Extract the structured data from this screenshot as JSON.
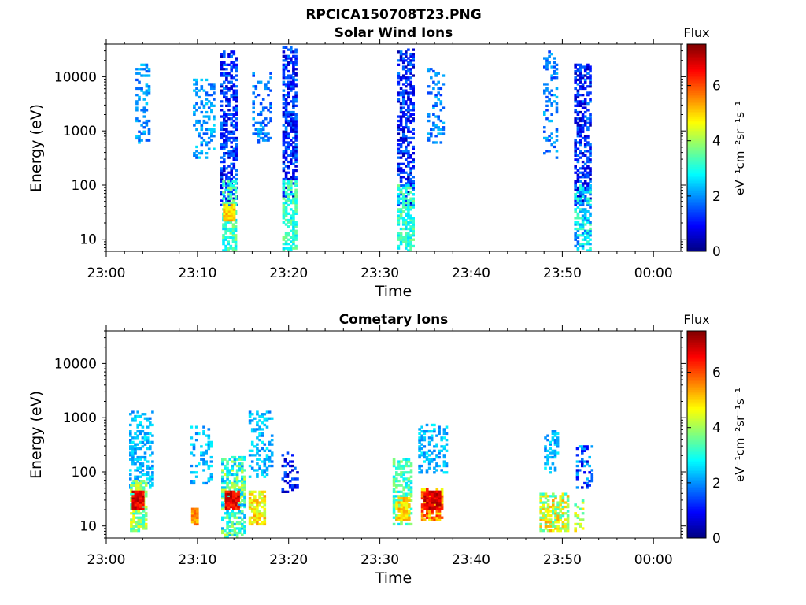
{
  "figure": {
    "title": "RPCICA150708T23.PNG"
  },
  "colorbar_colors": [
    "#00007f",
    "#0000ff",
    "#007fff",
    "#00ffff",
    "#7fff7f",
    "#ffff00",
    "#ff7f00",
    "#ff0000",
    "#7f0000"
  ],
  "chart_data": [
    {
      "type": "heatmap",
      "title": "Solar Wind Ions",
      "xlabel": "Time",
      "ylabel": "Energy (eV)",
      "yscale": "log",
      "ylim": [
        6,
        40000
      ],
      "xlim_minutes": [
        0,
        63
      ],
      "x_ticks": [
        "23:00",
        "23:10",
        "23:20",
        "23:30",
        "23:40",
        "23:50",
        "00:00"
      ],
      "y_ticks": [
        "10",
        "100",
        "1000",
        "10000"
      ],
      "colorbar": {
        "label": "Flux",
        "units": "eV⁻¹cm⁻²sr⁻¹s⁻¹",
        "range": [
          0,
          7.5
        ],
        "ticks": [
          "0",
          "2",
          "4",
          "6"
        ]
      },
      "regions": [
        {
          "t": [
            3.2,
            4.8
          ],
          "e": [
            600,
            18000
          ],
          "density": 0.35,
          "flux": [
            1.5,
            2.5
          ]
        },
        {
          "t": [
            9.5,
            11.8
          ],
          "e": [
            300,
            9500
          ],
          "density": 0.3,
          "flux": [
            1.5,
            2.6
          ]
        },
        {
          "t": [
            12.5,
            14.2
          ],
          "e": [
            40,
            30000
          ],
          "density": 0.55,
          "flux": [
            0.3,
            2.0
          ]
        },
        {
          "t": [
            12.7,
            14.2
          ],
          "e": [
            6,
            120
          ],
          "density": 0.65,
          "flux": [
            2.5,
            4.0
          ]
        },
        {
          "t": [
            12.8,
            14.0
          ],
          "e": [
            22,
            45
          ],
          "density": 0.95,
          "flux": [
            4.5,
            5.5
          ]
        },
        {
          "t": [
            16.0,
            18.0
          ],
          "e": [
            600,
            12000
          ],
          "density": 0.3,
          "flux": [
            1.3,
            2.4
          ]
        },
        {
          "t": [
            19.3,
            20.9
          ],
          "e": [
            60,
            36000
          ],
          "density": 0.55,
          "flux": [
            0.3,
            2.0
          ]
        },
        {
          "t": [
            19.3,
            20.9
          ],
          "e": [
            6,
            120
          ],
          "density": 0.6,
          "flux": [
            2.5,
            3.8
          ]
        },
        {
          "t": [
            31.9,
            33.6
          ],
          "e": [
            40,
            33000
          ],
          "density": 0.55,
          "flux": [
            0.3,
            2.0
          ]
        },
        {
          "t": [
            31.9,
            33.6
          ],
          "e": [
            6,
            100
          ],
          "density": 0.6,
          "flux": [
            2.5,
            3.8
          ]
        },
        {
          "t": [
            35.2,
            36.9
          ],
          "e": [
            600,
            14000
          ],
          "density": 0.3,
          "flux": [
            1.3,
            2.4
          ]
        },
        {
          "t": [
            47.9,
            49.5
          ],
          "e": [
            300,
            30000
          ],
          "density": 0.3,
          "flux": [
            1.3,
            2.4
          ]
        },
        {
          "t": [
            51.3,
            53.1
          ],
          "e": [
            40,
            18000
          ],
          "density": 0.55,
          "flux": [
            0.3,
            2.0
          ]
        },
        {
          "t": [
            51.3,
            53.1
          ],
          "e": [
            6,
            100
          ],
          "density": 0.6,
          "flux": [
            1.5,
            3.5
          ]
        }
      ]
    },
    {
      "type": "heatmap",
      "title": "Cometary Ions",
      "xlabel": "Time",
      "ylabel": "Energy (eV)",
      "yscale": "log",
      "ylim": [
        6,
        40000
      ],
      "xlim_minutes": [
        0,
        63
      ],
      "x_ticks": [
        "23:00",
        "23:10",
        "23:20",
        "23:30",
        "23:40",
        "23:50",
        "00:00"
      ],
      "y_ticks": [
        "10",
        "100",
        "1000",
        "10000"
      ],
      "colorbar": {
        "label": "Flux",
        "units": "eV⁻¹cm⁻²sr⁻¹s⁻¹",
        "range": [
          0,
          7.5
        ],
        "ticks": [
          "0",
          "2",
          "4",
          "6"
        ]
      },
      "regions": [
        {
          "t": [
            2.5,
            5.0
          ],
          "e": [
            50,
            1300
          ],
          "density": 0.35,
          "flux": [
            1.8,
            2.8
          ]
        },
        {
          "t": [
            2.6,
            4.4
          ],
          "e": [
            8,
            70
          ],
          "density": 0.75,
          "flux": [
            3.0,
            4.8
          ]
        },
        {
          "t": [
            2.8,
            4.0
          ],
          "e": [
            20,
            45
          ],
          "density": 0.95,
          "flux": [
            6.2,
            7.3
          ]
        },
        {
          "t": [
            9.2,
            11.5
          ],
          "e": [
            60,
            700
          ],
          "density": 0.3,
          "flux": [
            1.8,
            2.8
          ]
        },
        {
          "t": [
            9.3,
            10.1
          ],
          "e": [
            10,
            22
          ],
          "density": 0.9,
          "flux": [
            5.0,
            6.0
          ]
        },
        {
          "t": [
            12.6,
            15.2
          ],
          "e": [
            6,
            200
          ],
          "density": 0.6,
          "flux": [
            2.0,
            4.5
          ]
        },
        {
          "t": [
            13.0,
            14.5
          ],
          "e": [
            20,
            45
          ],
          "density": 0.95,
          "flux": [
            6.0,
            7.3
          ]
        },
        {
          "t": [
            15.6,
            18.2
          ],
          "e": [
            80,
            1300
          ],
          "density": 0.35,
          "flux": [
            1.8,
            2.8
          ]
        },
        {
          "t": [
            15.6,
            17.4
          ],
          "e": [
            10,
            45
          ],
          "density": 0.75,
          "flux": [
            4.0,
            5.5
          ]
        },
        {
          "t": [
            19.2,
            21.0
          ],
          "e": [
            40,
            230
          ],
          "density": 0.4,
          "flux": [
            0.3,
            1.8
          ]
        },
        {
          "t": [
            31.4,
            33.5
          ],
          "e": [
            10,
            180
          ],
          "density": 0.55,
          "flux": [
            2.5,
            4.0
          ]
        },
        {
          "t": [
            31.7,
            33.2
          ],
          "e": [
            12,
            35
          ],
          "density": 0.85,
          "flux": [
            4.5,
            5.5
          ]
        },
        {
          "t": [
            34.2,
            37.2
          ],
          "e": [
            90,
            800
          ],
          "density": 0.35,
          "flux": [
            1.8,
            2.8
          ]
        },
        {
          "t": [
            34.5,
            36.8
          ],
          "e": [
            12,
            50
          ],
          "density": 0.8,
          "flux": [
            4.5,
            6.5
          ]
        },
        {
          "t": [
            34.8,
            36.5
          ],
          "e": [
            20,
            45
          ],
          "density": 0.95,
          "flux": [
            6.3,
            7.3
          ]
        },
        {
          "t": [
            47.5,
            50.5
          ],
          "e": [
            8,
            40
          ],
          "density": 0.65,
          "flux": [
            3.0,
            5.5
          ]
        },
        {
          "t": [
            48.0,
            49.5
          ],
          "e": [
            90,
            600
          ],
          "density": 0.3,
          "flux": [
            1.8,
            2.8
          ]
        },
        {
          "t": [
            51.5,
            53.2
          ],
          "e": [
            50,
            300
          ],
          "density": 0.35,
          "flux": [
            0.5,
            2.5
          ]
        },
        {
          "t": [
            51.3,
            52.2
          ],
          "e": [
            8,
            30
          ],
          "density": 0.5,
          "flux": [
            3.0,
            5.0
          ]
        }
      ]
    }
  ]
}
